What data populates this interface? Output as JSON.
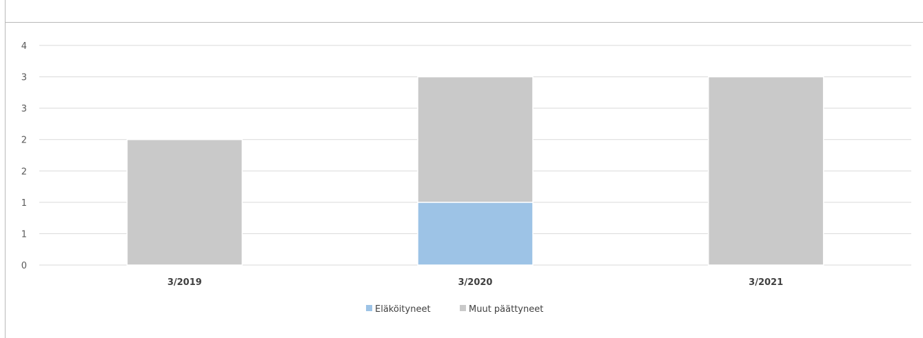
{
  "chart_data": {
    "type": "bar",
    "stacked": true,
    "categories": [
      "3/2019",
      "3/2020",
      "3/2021"
    ],
    "series": [
      {
        "name": "Eläköityneet",
        "values": [
          0,
          1,
          0
        ],
        "color": "#9dc3e6"
      },
      {
        "name": "Muut päättyneet",
        "values": [
          2,
          2,
          3
        ],
        "color": "#c9c9c9"
      }
    ],
    "y_ticks": [
      {
        "v": 0,
        "label": "0"
      },
      {
        "v": 0.5,
        "label": "1"
      },
      {
        "v": 1,
        "label": "1"
      },
      {
        "v": 1.5,
        "label": "2"
      },
      {
        "v": 2,
        "label": "2"
      },
      {
        "v": 2.5,
        "label": "3"
      },
      {
        "v": 3,
        "label": "3"
      },
      {
        "v": 3.5,
        "label": "4"
      }
    ],
    "ylim": [
      0,
      3.5
    ],
    "grid": true,
    "legend_position": "bottom",
    "gridline_color": "#d9d9d9"
  }
}
